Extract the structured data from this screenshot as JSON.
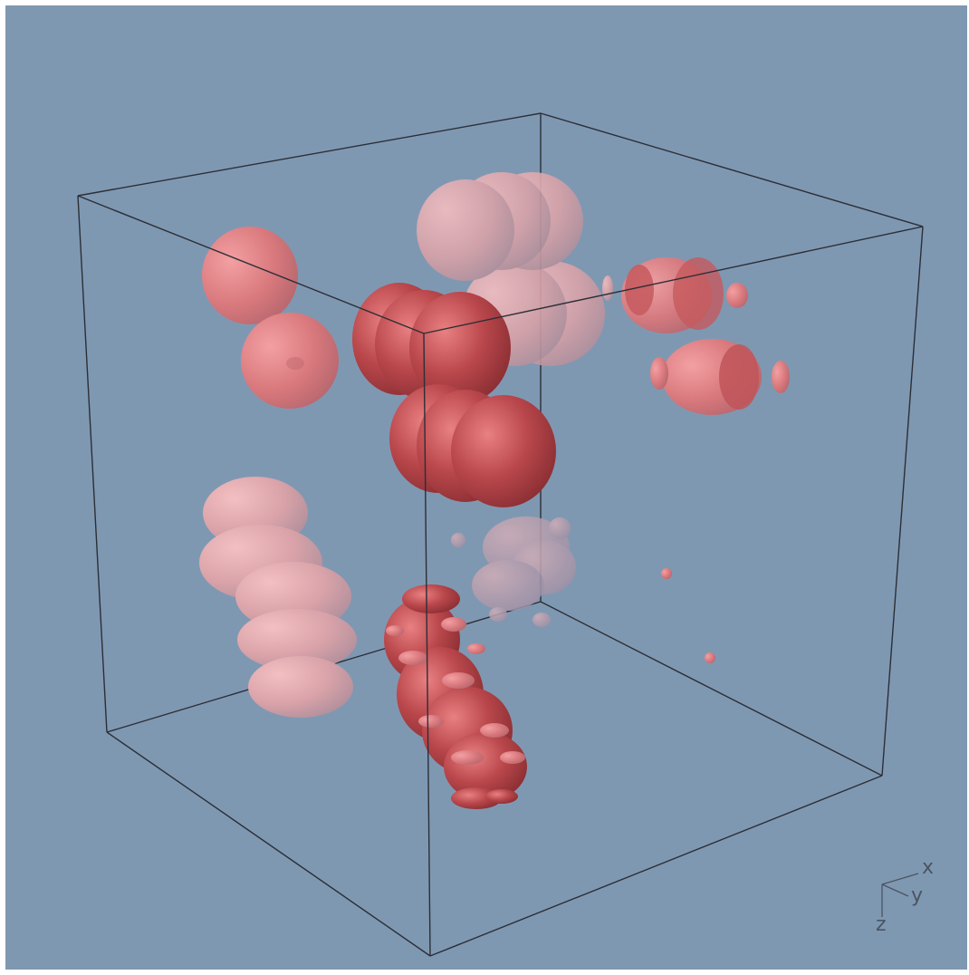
{
  "view": {
    "background_color": "#7f98b2",
    "box_edge_color": "#222222",
    "surface_color": "#d8696b"
  },
  "orientation_axes": {
    "x_label": "x",
    "y_label": "y",
    "z_label": "z"
  }
}
